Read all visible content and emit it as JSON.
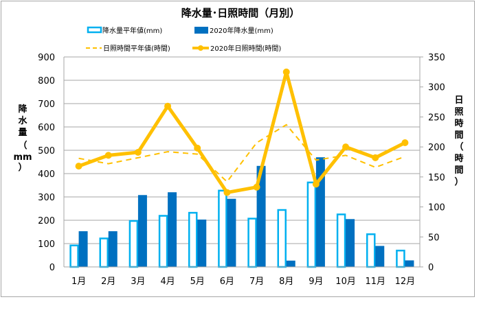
{
  "chart_data": {
    "type": "bar",
    "title": "降水量･日照時間（月別）",
    "categories": [
      "1月",
      "2月",
      "3月",
      "4月",
      "5月",
      "6月",
      "7月",
      "8月",
      "9月",
      "10月",
      "11月",
      "12月"
    ],
    "ylabel": "降水量（mm）",
    "y2label": "日照時間（時間）",
    "ylim": [
      0,
      900
    ],
    "y2lim": [
      0,
      350
    ],
    "yticks": [
      "0",
      "100",
      "200",
      "300",
      "400",
      "500",
      "600",
      "700",
      "800",
      "900"
    ],
    "y2ticks": [
      "0",
      "50",
      "100",
      "150",
      "200",
      "250",
      "300",
      "350"
    ],
    "grid": true,
    "legend_placement": "top",
    "series": [
      {
        "name": "降水量平年値(mm)",
        "kind": "bar-outline",
        "axis": "left",
        "color": "#00b0f0",
        "values": [
          95,
          125,
          200,
          222,
          235,
          330,
          210,
          247,
          365,
          228,
          143,
          73
        ]
      },
      {
        "name": "2020年降水量(mm)",
        "kind": "bar",
        "axis": "left",
        "color": "#0070c0",
        "values": [
          153,
          153,
          308,
          320,
          203,
          292,
          433,
          27,
          470,
          205,
          90,
          28
        ]
      },
      {
        "name": "日照時間平年値(時間)",
        "kind": "line-dashed",
        "axis": "right",
        "color": "#ffc000",
        "values": [
          181,
          172,
          182,
          192,
          188,
          142,
          207,
          237,
          178,
          186,
          166,
          184
        ]
      },
      {
        "name": "2020年日照時間(時間)",
        "kind": "line-marker",
        "axis": "right",
        "color": "#ffc000",
        "values": [
          168,
          186,
          191,
          268,
          198,
          124,
          133,
          325,
          138,
          200,
          182,
          207
        ]
      }
    ]
  }
}
